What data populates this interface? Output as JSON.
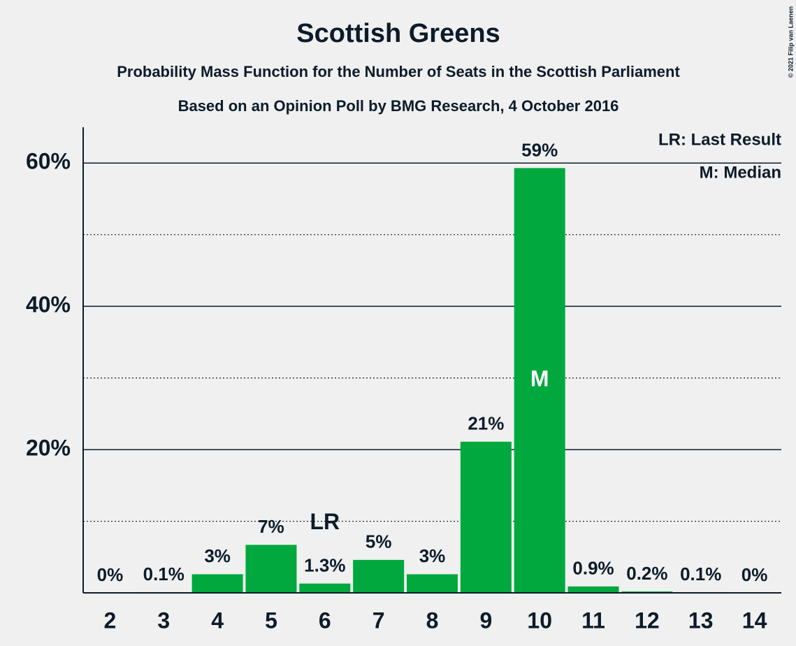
{
  "chart_data": {
    "type": "bar",
    "title": "Scottish Greens",
    "subtitles": [
      "Probability Mass Function for the Number of Seats in the Scottish Parliament",
      "Based on an Opinion Poll by BMG Research, 4 October 2016"
    ],
    "categories": [
      "2",
      "3",
      "4",
      "5",
      "6",
      "7",
      "8",
      "9",
      "10",
      "11",
      "12",
      "13",
      "14"
    ],
    "values": [
      0,
      0.1,
      2.6,
      6.7,
      1.3,
      4.6,
      2.6,
      21.1,
      59.3,
      0.9,
      0.2,
      0.1,
      0
    ],
    "value_labels": [
      "0%",
      "0.1%",
      "3%",
      "7%",
      "1.3%",
      "5%",
      "3%",
      "21%",
      "59%",
      "0.9%",
      "0.2%",
      "0.1%",
      "0%"
    ],
    "color": "#00a83e",
    "ylim": [
      0,
      65
    ],
    "yticks": [
      {
        "value": 20,
        "label": "20%"
      },
      {
        "value": 40,
        "label": "40%"
      },
      {
        "value": 60,
        "label": "60%"
      }
    ],
    "minor_yticks": [
      10,
      30,
      50
    ],
    "annotations": [
      {
        "label": "LR",
        "category": "6",
        "place": "above"
      },
      {
        "label": "M",
        "category": "10",
        "place": "inside"
      }
    ],
    "legend": [
      "LR: Last Result",
      "M: Median"
    ],
    "copyright": "© 2021 Filip van Laenen"
  }
}
